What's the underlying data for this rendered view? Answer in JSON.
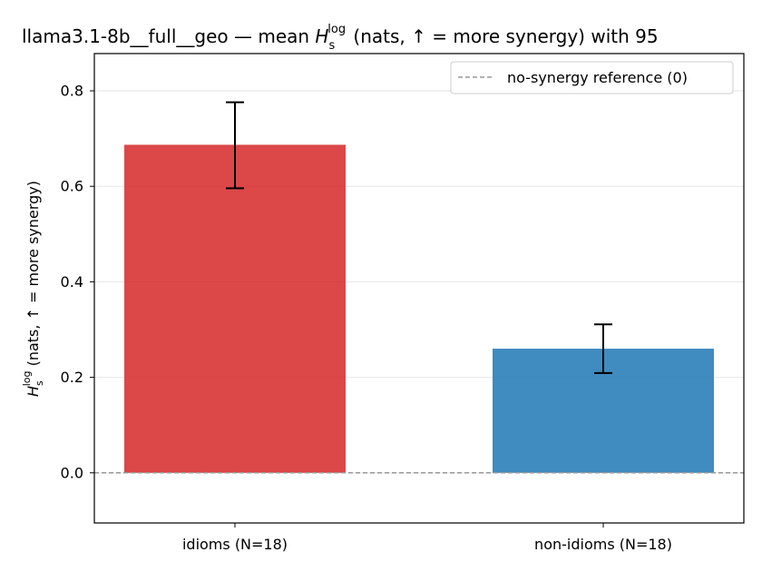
{
  "chart_data": {
    "type": "bar",
    "title_prefix": "llama3.1-8b__full__geo — mean ",
    "title_suffix": " (nats, ↑ = more synergy) with 95",
    "symbol": {
      "main": "H",
      "sub": "s",
      "sup": "log"
    },
    "ylabel_suffix": " (nats, ↑ = more synergy)",
    "categories": [
      "idioms (N=18)",
      "non-idioms (N=18)"
    ],
    "values": [
      0.687,
      0.26
    ],
    "ci_low": [
      0.596,
      0.209
    ],
    "ci_high": [
      0.776,
      0.311
    ],
    "colors": [
      "#d62728",
      "#1f77b4"
    ],
    "bar_opacity": 0.85,
    "ylim": [
      -0.105,
      0.878
    ],
    "yticks": [
      0.0,
      0.2,
      0.4,
      0.6,
      0.8
    ],
    "ytick_labels": [
      "0.0",
      "0.2",
      "0.4",
      "0.6",
      "0.8"
    ],
    "grid": "y",
    "reference_line": {
      "y": 0,
      "label": "no-synergy reference (0)",
      "style": "dashed",
      "color": "#999999"
    },
    "legend_placement": "top-right"
  }
}
